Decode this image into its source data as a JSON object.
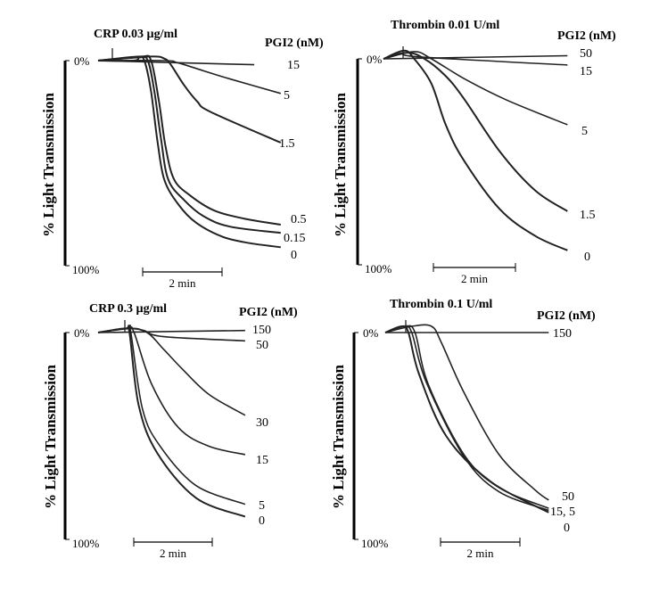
{
  "chart_data": [
    {
      "type": "line",
      "title": "CRP 0.03 µg/ml",
      "legend_title": "PGI2 (nM)",
      "ylabel": "% Light Transmission",
      "yticks": [
        "0%",
        "100%"
      ],
      "ylim": [
        0,
        100
      ],
      "time_scale_bar": "2 min",
      "x_units": "s",
      "series": [
        {
          "name": "15",
          "points": [
            [
              0,
              0
            ],
            [
              236,
              2
            ]
          ]
        },
        {
          "name": "5",
          "points": [
            [
              0,
              0
            ],
            [
              100,
              0
            ],
            [
              120,
              1
            ],
            [
              150,
              4
            ],
            [
              200,
              9
            ],
            [
              276,
              16
            ]
          ]
        },
        {
          "name": "1.5",
          "points": [
            [
              0,
              0
            ],
            [
              80,
              -2
            ],
            [
              100,
              -1
            ],
            [
              110,
              2
            ],
            [
              130,
              12
            ],
            [
              150,
              20
            ],
            [
              170,
              25
            ],
            [
              276,
              40
            ]
          ]
        },
        {
          "name": "0.5",
          "points": [
            [
              0,
              0
            ],
            [
              65,
              -2
            ],
            [
              80,
              0
            ],
            [
              92,
              20
            ],
            [
              102,
              42
            ],
            [
              115,
              58
            ],
            [
              140,
              66
            ],
            [
              175,
              73
            ],
            [
              220,
              77
            ],
            [
              276,
              80
            ]
          ]
        },
        {
          "name": "0.15",
          "points": [
            [
              0,
              0
            ],
            [
              60,
              -1.5
            ],
            [
              75,
              0
            ],
            [
              85,
              15
            ],
            [
              95,
              38
            ],
            [
              106,
              58
            ],
            [
              130,
              68
            ],
            [
              160,
              76
            ],
            [
              200,
              81
            ],
            [
              276,
              84
            ]
          ]
        },
        {
          "name": "0",
          "points": [
            [
              0,
              0
            ],
            [
              54,
              0
            ],
            [
              62,
              -1.5
            ],
            [
              70,
              0
            ],
            [
              80,
              15
            ],
            [
              90,
              40
            ],
            [
              100,
              58
            ],
            [
              121,
              70
            ],
            [
              148,
              79
            ],
            [
              189,
              86
            ],
            [
              229,
              89
            ],
            [
              276,
              91
            ]
          ]
        }
      ]
    },
    {
      "type": "line",
      "title": "Thrombin 0.01 U/ml",
      "legend_title": "PGI2 (nM)",
      "ylabel": "% Light Transmission",
      "yticks": [
        "0%",
        "100%"
      ],
      "ylim": [
        0,
        100
      ],
      "time_scale_bar": "2 min",
      "x_units": "s",
      "series": [
        {
          "name": "50",
          "points": [
            [
              0,
              0
            ],
            [
              269,
              -1.5
            ]
          ]
        },
        {
          "name": "15",
          "points": [
            [
              0,
              0
            ],
            [
              30,
              -3
            ],
            [
              50,
              -1
            ],
            [
              269,
              3
            ]
          ]
        },
        {
          "name": "5",
          "points": [
            [
              0,
              0
            ],
            [
              45,
              -3.5
            ],
            [
              70,
              0
            ],
            [
              120,
              10
            ],
            [
              180,
              20
            ],
            [
              269,
              32
            ]
          ]
        },
        {
          "name": "1.5",
          "points": [
            [
              0,
              0
            ],
            [
              35,
              -3
            ],
            [
              60,
              0
            ],
            [
              90,
              8
            ],
            [
              117,
              19
            ],
            [
              170,
              45
            ],
            [
              222,
              64
            ],
            [
              269,
              74
            ]
          ]
        },
        {
          "name": "0",
          "points": [
            [
              0,
              0
            ],
            [
              30,
              -4
            ],
            [
              45,
              0
            ],
            [
              70,
              12
            ],
            [
              91,
              32
            ],
            [
              117,
              49
            ],
            [
              170,
              73
            ],
            [
              222,
              86
            ],
            [
              269,
              93
            ]
          ]
        }
      ]
    },
    {
      "type": "line",
      "title": "CRP 0.3 µg/ml",
      "legend_title": "PGI2 (nM)",
      "ylabel": "% Light Transmission",
      "yticks": [
        "0%",
        "100%"
      ],
      "ylim": [
        0,
        100
      ],
      "time_scale_bar": "2 min",
      "x_units": "s",
      "series": [
        {
          "name": "150",
          "points": [
            [
              0,
              0
            ],
            [
              225,
              -1
            ]
          ]
        },
        {
          "name": "50",
          "points": [
            [
              0,
              0
            ],
            [
              50,
              -2
            ],
            [
              70,
              -1
            ],
            [
              100,
              2
            ],
            [
              225,
              4
            ]
          ]
        },
        {
          "name": "30",
          "points": [
            [
              0,
              0
            ],
            [
              45,
              -2
            ],
            [
              75,
              0
            ],
            [
              100,
              8
            ],
            [
              130,
              18
            ],
            [
              170,
              30
            ],
            [
              225,
              40
            ]
          ]
        },
        {
          "name": "15",
          "points": [
            [
              0,
              0
            ],
            [
              45,
              -2
            ],
            [
              55,
              0
            ],
            [
              82,
              25
            ],
            [
              123,
              46
            ],
            [
              170,
              55
            ],
            [
              225,
              59
            ]
          ]
        },
        {
          "name": "5",
          "points": [
            [
              0,
              0
            ],
            [
              45,
              -2
            ],
            [
              50,
              0
            ],
            [
              68,
              37
            ],
            [
              95,
              55
            ],
            [
              150,
              74
            ],
            [
              225,
              83
            ]
          ]
        },
        {
          "name": "0",
          "points": [
            [
              0,
              0
            ],
            [
              42,
              -2
            ],
            [
              48,
              0
            ],
            [
              62,
              35
            ],
            [
              90,
              58
            ],
            [
              150,
              80
            ],
            [
              225,
              89
            ]
          ]
        }
      ]
    },
    {
      "type": "line",
      "title": "Thrombin 0.1 U/ml",
      "legend_title": "PGI2 (nM)",
      "ylabel": "% Light Transmission",
      "yticks": [
        "0%",
        "100%"
      ],
      "ylim": [
        0,
        100
      ],
      "time_scale_bar": "2 min",
      "x_units": "s",
      "series": [
        {
          "name": "150",
          "points": [
            [
              0,
              0
            ],
            [
              247,
              0
            ]
          ]
        },
        {
          "name": "50",
          "points": [
            [
              0,
              0
            ],
            [
              40,
              -3
            ],
            [
              70,
              -3
            ],
            [
              85,
              5
            ],
            [
              119,
              29
            ],
            [
              172,
              59
            ],
            [
              226,
              76
            ],
            [
              247,
              81
            ]
          ]
        },
        {
          "name": "15, 5",
          "points": [
            [
              0,
              0
            ],
            [
              30,
              -3
            ],
            [
              45,
              0
            ],
            [
              65,
              25
            ],
            [
              119,
              59
            ],
            [
              172,
              75
            ],
            [
              247,
              85
            ]
          ]
        },
        {
          "name": "15, 5 (b)",
          "points": [
            [
              0,
              0
            ],
            [
              28,
              -3
            ],
            [
              40,
              0
            ],
            [
              62,
              24
            ],
            [
              119,
              60
            ],
            [
              172,
              77
            ],
            [
              247,
              86
            ]
          ]
        },
        {
          "name": "0",
          "points": [
            [
              0,
              0
            ],
            [
              25,
              -3
            ],
            [
              35,
              0
            ],
            [
              51,
              20
            ],
            [
              92,
              50
            ],
            [
              159,
              72
            ],
            [
              247,
              87
            ]
          ]
        }
      ]
    }
  ]
}
